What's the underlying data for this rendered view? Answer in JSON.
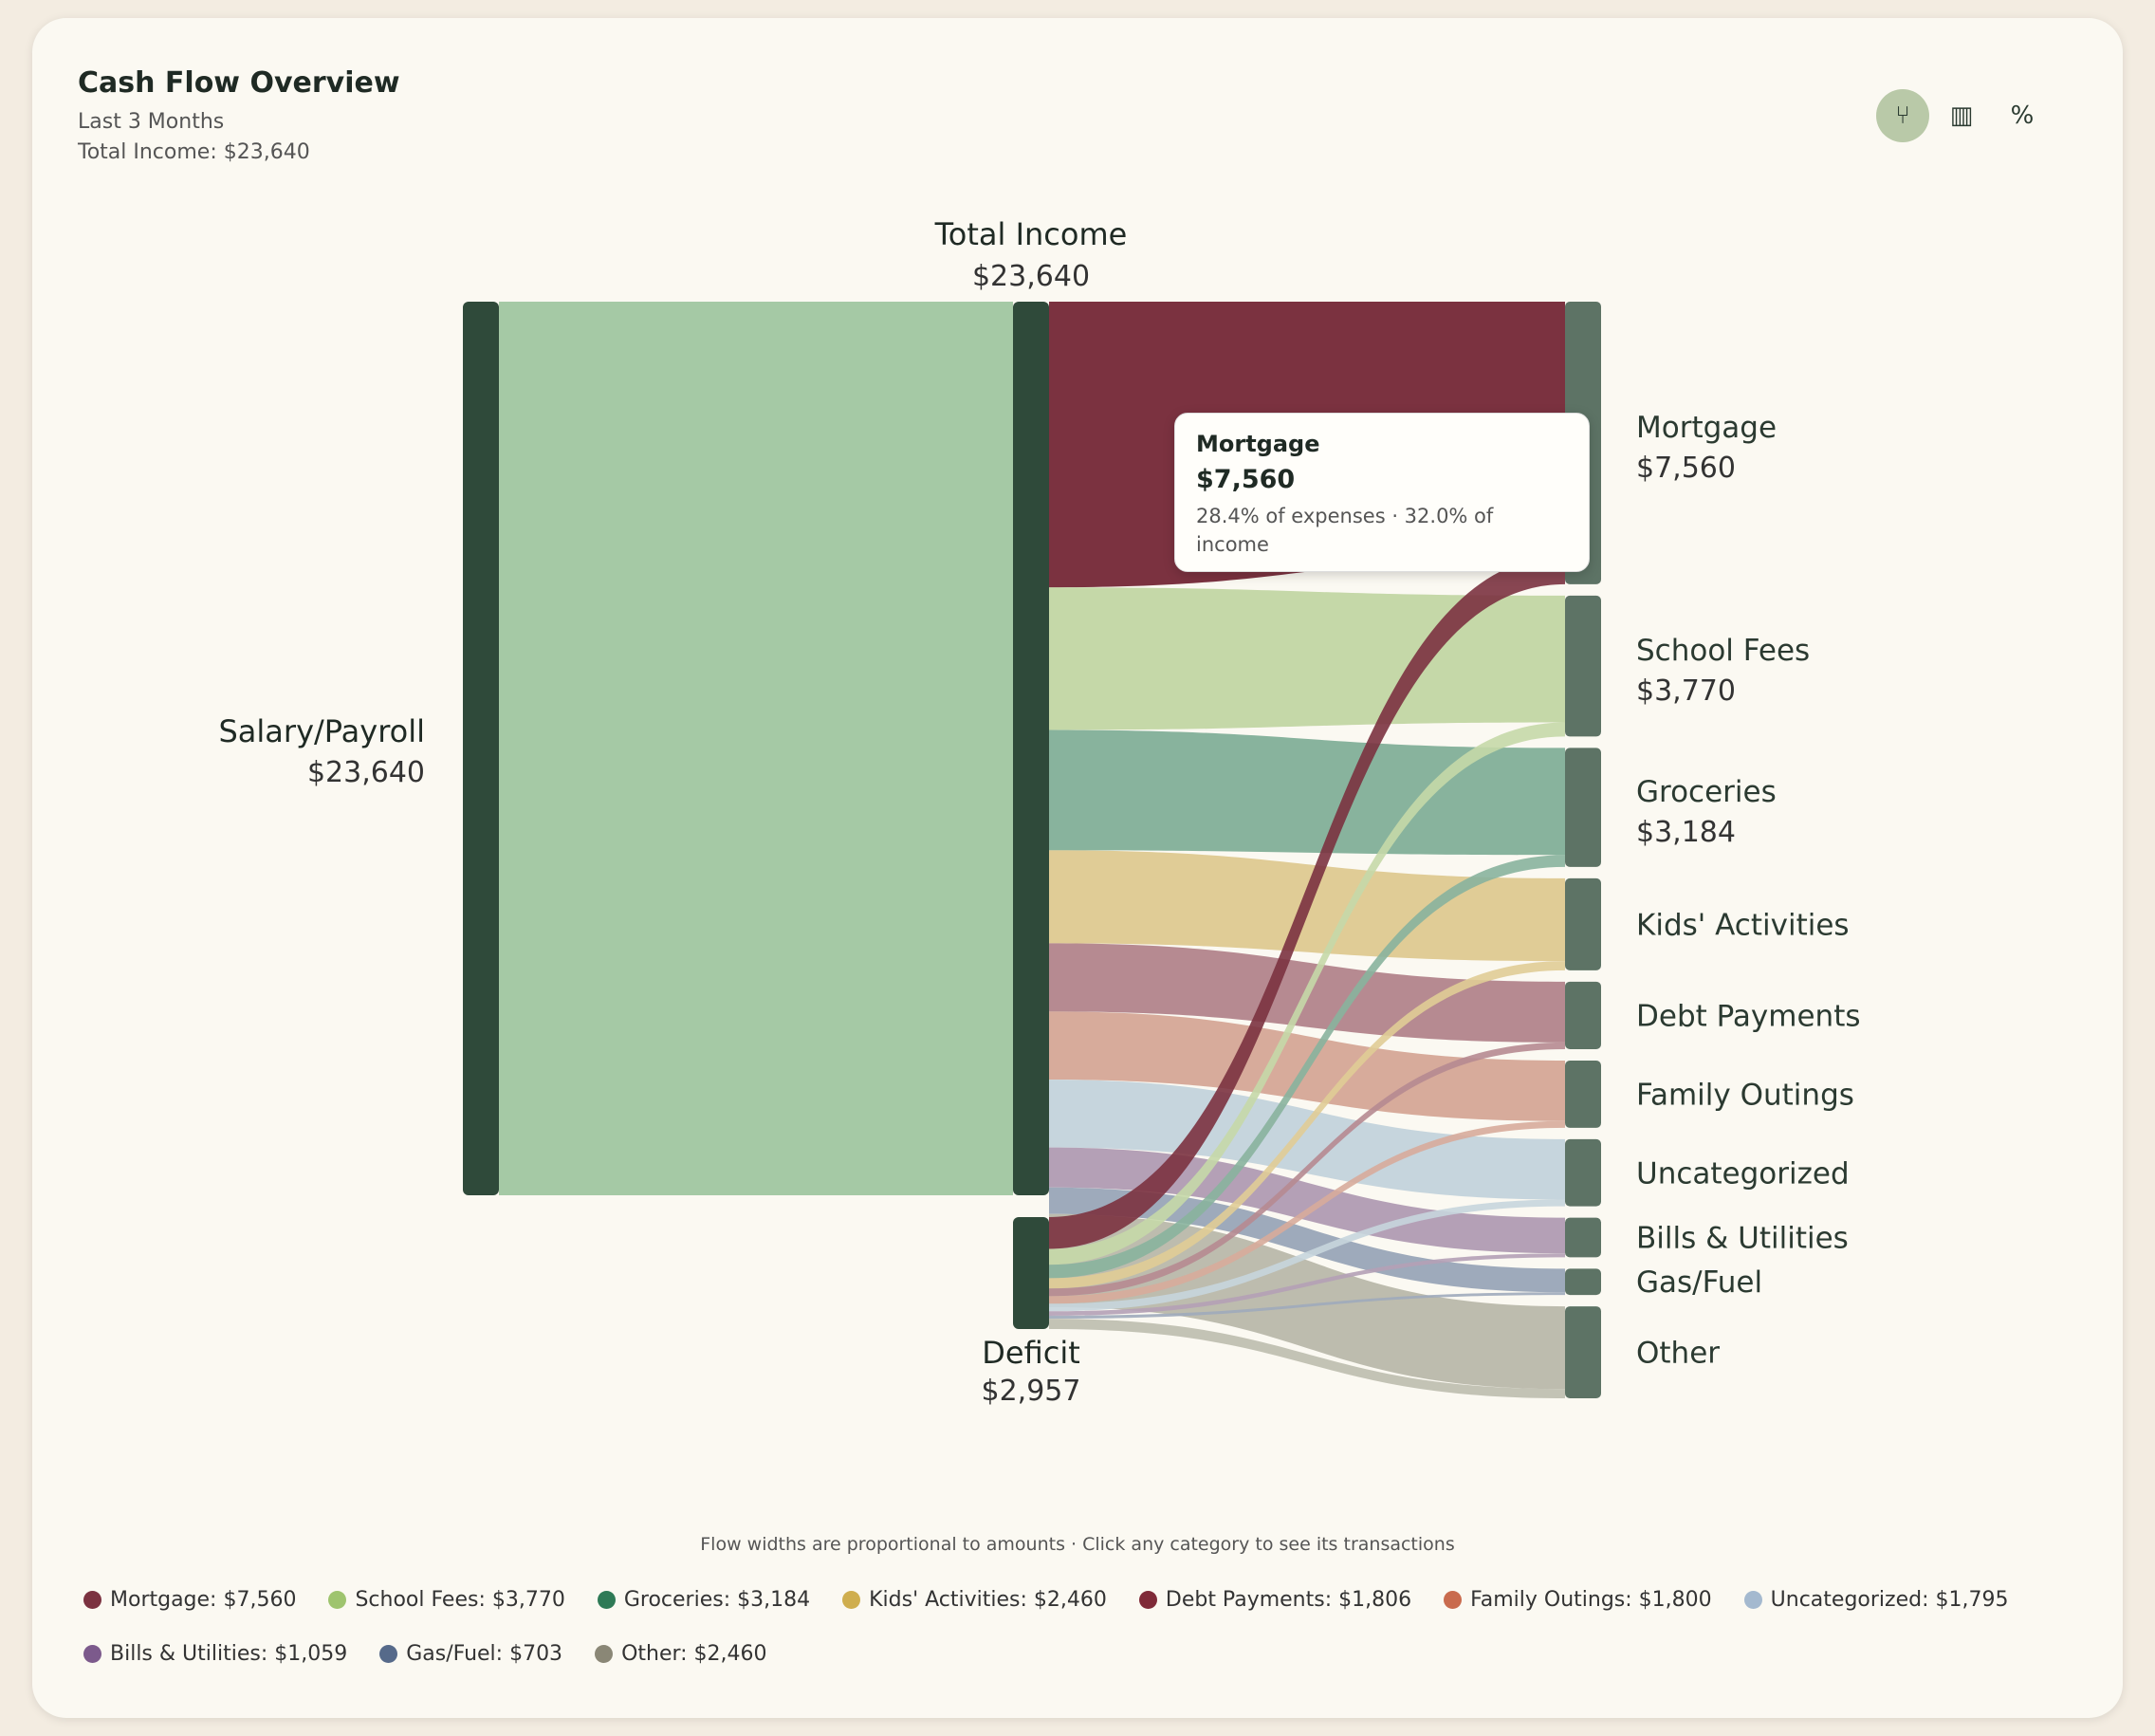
{
  "header": {
    "title": "Cash Flow Overview",
    "subtitle": "Last 3 Months",
    "total_income": "Total Income: $23,640"
  },
  "toolbar": {
    "tools": [
      {
        "name": "sankey-view",
        "icon": "branch-icon",
        "glyph": "⑂",
        "active": true
      },
      {
        "name": "bar-view",
        "icon": "bar-chart-icon",
        "glyph": "▥",
        "active": false
      },
      {
        "name": "percent-view",
        "icon": "percent-icon",
        "glyph": "%",
        "active": false
      }
    ]
  },
  "tooltip": {
    "title": "Mortgage",
    "value": "$7,560",
    "note": "28.4% of expenses · 32.0% of income"
  },
  "footnote": "Flow widths are proportional to amounts · Click any category to see its transactions",
  "legend": [
    {
      "label": "Mortgage: $7,560",
      "color": "#7b3240"
    },
    {
      "label": "School Fees: $3,770",
      "color": "#9ec46e"
    },
    {
      "label": "Groceries: $3,184",
      "color": "#2e7a56"
    },
    {
      "label": "Kids' Activities: $2,460",
      "color": "#cfae4e"
    },
    {
      "label": "Debt Payments: $1,806",
      "color": "#7f2a38"
    },
    {
      "label": "Family Outings: $1,800",
      "color": "#c96b4e"
    },
    {
      "label": "Uncategorized: $1,795",
      "color": "#a4b9cf"
    },
    {
      "label": "Bills & Utilities: $1,059",
      "color": "#7c5a8c"
    },
    {
      "label": "Gas/Fuel: $703",
      "color": "#566a8a"
    },
    {
      "label": "Other: $2,460",
      "color": "#8a8776"
    }
  ],
  "chart_data": {
    "type": "sankey",
    "sources": [
      {
        "name": "Salary/Payroll",
        "value": 23640,
        "value_label": "$23,640"
      },
      {
        "name": "Deficit",
        "value": 2957,
        "value_label": "$2,957"
      }
    ],
    "hub": {
      "name": "Total Income",
      "value": 23640,
      "value_label": "$23,640"
    },
    "categories": [
      {
        "name": "Mortgage",
        "value": 7560,
        "value_label": "$7,560",
        "flow_color": "#7b3240"
      },
      {
        "name": "School Fees",
        "value": 3770,
        "value_label": "$3,770",
        "flow_color": "#c5d8a8"
      },
      {
        "name": "Groceries",
        "value": 3184,
        "value_label": "$3,184",
        "flow_color": "#88b39d"
      },
      {
        "name": "Kids' Activities",
        "value": 2460,
        "value_label": "",
        "flow_color": "#e0cc96"
      },
      {
        "name": "Debt Payments",
        "value": 1806,
        "value_label": "",
        "flow_color": "#b68a91"
      },
      {
        "name": "Family Outings",
        "value": 1800,
        "value_label": "",
        "flow_color": "#d7ab9b"
      },
      {
        "name": "Uncategorized",
        "value": 1795,
        "value_label": "",
        "flow_color": "#c6d5dd"
      },
      {
        "name": "Bills & Utilities",
        "value": 1059,
        "value_label": "",
        "flow_color": "#b4a0b6"
      },
      {
        "name": "Gas/Fuel",
        "value": 703,
        "value_label": "",
        "flow_color": "#9eaabb"
      },
      {
        "name": "Other",
        "value": 2460,
        "value_label": "",
        "flow_color": "#bdbcae"
      }
    ],
    "colors": {
      "node_dark": "#2f4a3a",
      "node_category": "#5d7365",
      "salary_flow": "#a5c9a5",
      "deficit_flow": "#a5c9a5"
    }
  }
}
